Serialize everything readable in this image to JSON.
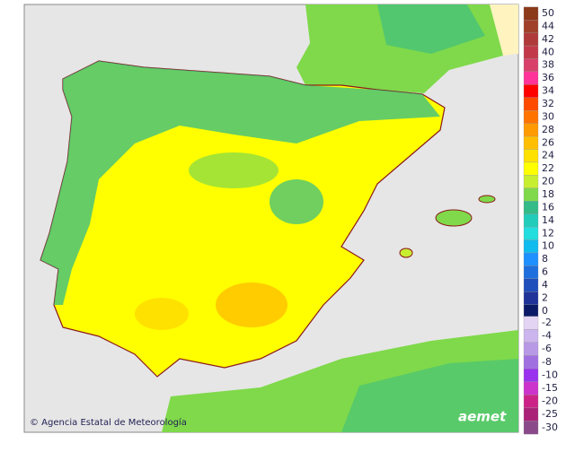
{
  "credit": "© Agencia Estatal de Meteorología",
  "logo": "aemet",
  "legend": {
    "upper": [
      {
        "label": "50",
        "color": "#8b3a1a"
      },
      {
        "label": "44",
        "color": "#a0402a"
      },
      {
        "label": "42",
        "color": "#b03a3a"
      },
      {
        "label": "40",
        "color": "#c23a4a"
      },
      {
        "label": "38",
        "color": "#d8406a"
      },
      {
        "label": "36",
        "color": "#ff3399"
      },
      {
        "label": "34",
        "color": "#ff0000"
      },
      {
        "label": "32",
        "color": "#ff4a00"
      },
      {
        "label": "30",
        "color": "#ff7300"
      },
      {
        "label": "28",
        "color": "#ff9a00"
      },
      {
        "label": "26",
        "color": "#ffbf00"
      },
      {
        "label": "24",
        "color": "#ffe100"
      },
      {
        "label": "22",
        "color": "#ffff00"
      },
      {
        "label": "20",
        "color": "#c8ee30"
      },
      {
        "label": "18",
        "color": "#7fd94a"
      },
      {
        "label": "16",
        "color": "#33bb88"
      },
      {
        "label": "14",
        "color": "#22ccbb"
      },
      {
        "label": "12",
        "color": "#22dddd"
      },
      {
        "label": "10",
        "color": "#10bbee"
      },
      {
        "label": "8",
        "color": "#1e90ff"
      },
      {
        "label": "6",
        "color": "#1e6fdd"
      },
      {
        "label": "4",
        "color": "#1f4fbb"
      },
      {
        "label": "2",
        "color": "#1f3399"
      },
      {
        "label": "0",
        "color": "#0a1a66"
      }
    ],
    "lower": [
      {
        "label": "-2",
        "color": "#e2d4f2"
      },
      {
        "label": "-4",
        "color": "#ccb5ee"
      },
      {
        "label": "-6",
        "color": "#b899e6"
      },
      {
        "label": "-8",
        "color": "#a070e0"
      },
      {
        "label": "-10",
        "color": "#9933ee"
      },
      {
        "label": "-15",
        "color": "#cc33cc"
      },
      {
        "label": "-20",
        "color": "#cc2288"
      },
      {
        "label": "-25",
        "color": "#aa2277"
      },
      {
        "label": "-30",
        "color": "#8a4a8a"
      }
    ]
  }
}
